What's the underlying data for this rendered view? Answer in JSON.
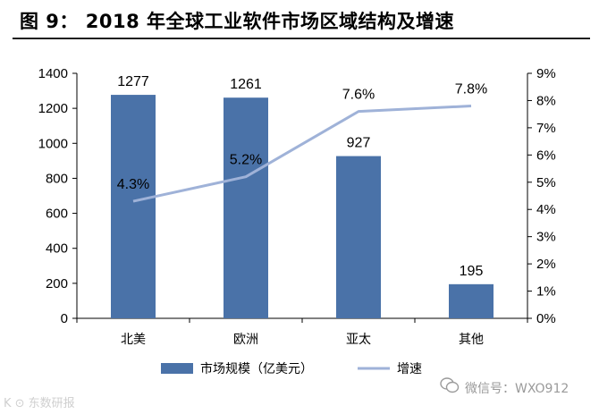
{
  "title": "图 9： 2018 年全球工业软件市场区域结构及增速",
  "chart_data": {
    "type": "bar+line",
    "categories": [
      "北美",
      "欧洲",
      "亚太",
      "其他"
    ],
    "bar_series": {
      "name": "市场规模（亿美元）",
      "values": [
        1277,
        1261,
        927,
        195
      ],
      "color": "#4a72a8"
    },
    "line_series": {
      "name": "增速",
      "values": [
        4.3,
        5.2,
        7.6,
        7.8
      ],
      "labels": [
        "4.3%",
        "5.2%",
        "7.6%",
        "7.8%"
      ],
      "color": "#9fb2d8"
    },
    "y_left": {
      "min": 0,
      "max": 1400,
      "ticks": [
        "0",
        "200",
        "400",
        "600",
        "800",
        "1000",
        "1200",
        "1400"
      ]
    },
    "y_right": {
      "min": 0,
      "max": 9,
      "ticks": [
        "0%",
        "1%",
        "2%",
        "3%",
        "4%",
        "5%",
        "6%",
        "7%",
        "8%",
        "9%"
      ]
    },
    "legend_position": "bottom"
  },
  "watermarks": {
    "left": "K ⊙ 东数研报",
    "right": "微信号：WXO912"
  }
}
